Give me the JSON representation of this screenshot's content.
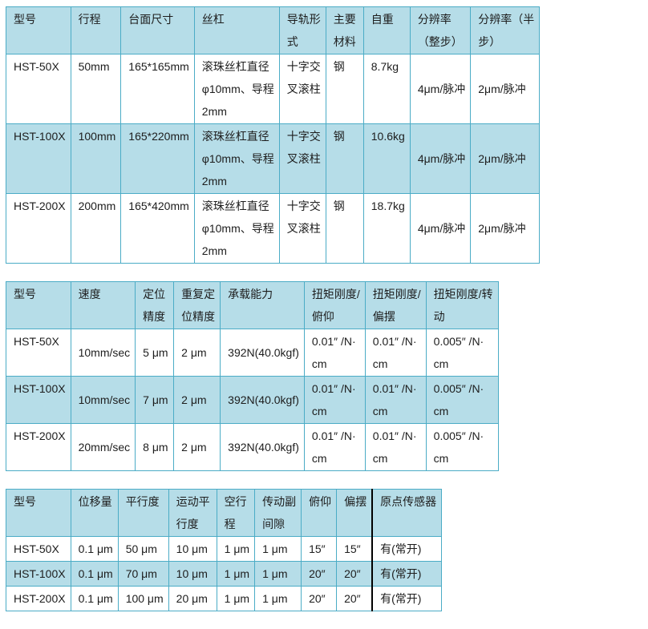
{
  "colors": {
    "border": "#4BACC6",
    "header_bg": "#B6DDE8",
    "alt_row_bg": "#B6DDE8",
    "divider_black": "#000000",
    "text": "#1d1d1d",
    "page_bg": "#ffffff"
  },
  "tables": [
    {
      "name": "travel-and-resolution-specs",
      "headers": [
        "型号",
        "行程",
        "台面尺寸",
        "丝杠",
        "导轨形\n式",
        "主要\n材料",
        "自重",
        "分辨率\n（整步）",
        "分辨率（半\n步）"
      ],
      "rows": [
        [
          "HST-50X",
          "50mm",
          "165*165mm",
          "滚珠丝杠直径\nφ10mm、导程\n2mm",
          "十字交\n叉滚柱",
          "钢",
          "8.7kg",
          "4μm/脉冲",
          "2μm/脉冲"
        ],
        [
          "HST-100X",
          "100mm",
          "165*220mm",
          "滚珠丝杠直径\nφ10mm、导程\n2mm",
          "十字交\n叉滚柱",
          "钢",
          "10.6kg",
          "4μm/脉冲",
          "2μm/脉冲"
        ],
        [
          "HST-200X",
          "200mm",
          "165*420mm",
          "滚珠丝杠直径\nφ10mm、导程\n2mm",
          "十字交\n叉滚柱",
          "钢",
          "18.7kg",
          "4μm/脉冲",
          "2μm/脉冲"
        ]
      ]
    },
    {
      "name": "speed-accuracy-load-specs",
      "headers": [
        "型号",
        "速度",
        "定位\n精度",
        "重复定\n位精度",
        "承载能力",
        "扭矩刚度/\n俯仰",
        "扭矩刚度/\n偏摆",
        "扭矩刚度/转\n动"
      ],
      "rows": [
        [
          "HST-50X",
          "10mm/sec",
          "5 μm",
          "2 μm",
          "392N(40.0kgf)",
          "0.01″ /N·\ncm",
          "0.01″ /N·\ncm",
          "0.005″ /N·\ncm"
        ],
        [
          "HST-100X",
          "10mm/sec",
          "7 μm",
          "2 μm",
          "392N(40.0kgf)",
          "0.01″ /N·\ncm",
          "0.01″ /N·\ncm",
          "0.005″ /N·\ncm"
        ],
        [
          "HST-200X",
          "20mm/sec",
          "8 μm",
          "2 μm",
          "392N(40.0kgf)",
          "0.01″ /N·\ncm",
          "0.01″ /N·\ncm",
          "0.005″ /N·\ncm"
        ]
      ]
    },
    {
      "name": "parallelism-and-sensor-specs",
      "headers": [
        "型号",
        "位移量",
        "平行度",
        "运动平\n行度",
        "空行\n程",
        "传动副\n间隙",
        "俯仰",
        "偏摆",
        "原点传感器"
      ],
      "rows": [
        [
          "HST-50X",
          "0.1 μm",
          "50 μm",
          "10 μm",
          "1 μm",
          "1 μm",
          "15″",
          "15″",
          "有(常开)"
        ],
        [
          "HST-100X",
          "0.1 μm",
          "70 μm",
          "10 μm",
          "1 μm",
          "1 μm",
          "20″",
          "20″",
          "有(常开)"
        ],
        [
          "HST-200X",
          "0.1 μm",
          "100 μm",
          "20 μm",
          "1 μm",
          "1 μm",
          "20″",
          "20″",
          "有(常开)"
        ]
      ]
    }
  ]
}
